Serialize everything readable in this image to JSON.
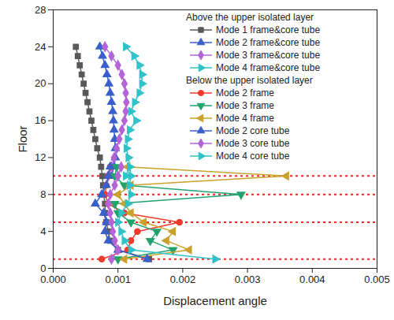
{
  "chart_data": {
    "type": "line",
    "x_label": "Displacement angle",
    "y_label": "Floor",
    "xlim": [
      0,
      0.005
    ],
    "xticks": [
      {
        "value": 0,
        "label": "0.000"
      },
      {
        "value": 0.001,
        "label": "0.001"
      },
      {
        "value": 0.002,
        "label": "0.002"
      },
      {
        "value": 0.003,
        "label": "0.003"
      },
      {
        "value": 0.004,
        "label": "0.004"
      },
      {
        "value": 0.005,
        "label": "0.005"
      }
    ],
    "ylim": [
      0,
      28
    ],
    "yticks": [
      0,
      4,
      8,
      12,
      16,
      20,
      24,
      28
    ],
    "legend": "upper right",
    "hlines": {
      "values": [
        1,
        5,
        8,
        10
      ],
      "color": "#ff2020",
      "line_style": "dotted"
    },
    "legend_groups": [
      {
        "title": "Above the upper isolated layer",
        "series": [
          "Mode 1 frame&core tube",
          "Mode 2 frame&core tube",
          "Mode 3 frame&core tube",
          "Mode 4 frame&core tube"
        ]
      },
      {
        "title": "Below the upper isolated layer",
        "series": [
          "Mode 2 frame",
          "Mode 3 frame",
          "Mode 4 frame",
          "Mode 2 core tube",
          "Mode 3 core tube",
          "Mode 4 core tube"
        ]
      }
    ],
    "series": [
      {
        "name": "Mode 1 frame&core tube",
        "color": "#595959",
        "marker": "square",
        "floors": [
          1,
          2,
          3,
          4,
          5,
          6,
          7,
          8,
          9,
          10,
          11,
          12,
          13,
          14,
          15,
          16,
          17,
          18,
          19,
          20,
          21,
          22,
          23,
          24
        ],
        "values": [
          0.00148,
          0.001,
          0.00088,
          0.00085,
          0.00082,
          0.0008,
          0.0008,
          0.00078,
          0.00077,
          0.00076,
          0.00074,
          0.00072,
          0.00068,
          0.00065,
          0.00062,
          0.00059,
          0.00056,
          0.00053,
          0.0005,
          0.00047,
          0.00044,
          0.00041,
          0.00038,
          0.00035
        ]
      },
      {
        "name": "Mode 2 frame&core tube",
        "color": "#3a5fcd",
        "marker": "triangle",
        "floors": [
          10,
          11,
          12,
          13,
          14,
          15,
          16,
          17,
          18,
          19,
          20,
          21,
          22,
          23,
          24
        ],
        "values": [
          0.0009,
          0.00094,
          0.00096,
          0.00096,
          0.00095,
          0.00094,
          0.00093,
          0.00092,
          0.0009,
          0.00088,
          0.00086,
          0.00083,
          0.0008,
          0.00076,
          0.00072
        ]
      },
      {
        "name": "Mode 3 frame&core tube",
        "color": "#b464d6",
        "marker": "diamond",
        "floors": [
          10,
          11,
          12,
          13,
          14,
          15,
          16,
          17,
          18,
          19,
          20,
          21,
          22,
          23,
          24
        ],
        "values": [
          0.00085,
          0.0009,
          0.00094,
          0.00098,
          0.00102,
          0.00106,
          0.0011,
          0.00112,
          0.00113,
          0.00112,
          0.0011,
          0.00106,
          0.001,
          0.0009,
          0.0008
        ]
      },
      {
        "name": "Mode 4 frame&core tube",
        "color": "#30c2c8",
        "marker": "triangle-right",
        "floors": [
          10,
          11,
          12,
          13,
          14,
          15,
          16,
          17,
          18,
          19,
          20,
          21,
          22,
          23,
          24
        ],
        "values": [
          0.00112,
          0.00118,
          0.00116,
          0.00113,
          0.00115,
          0.00118,
          0.00128,
          0.0012,
          0.00126,
          0.00133,
          0.00137,
          0.00137,
          0.00133,
          0.00125,
          0.00112
        ]
      },
      {
        "name": "Mode 2 frame",
        "color": "#f03a2c",
        "marker": "circle",
        "floors": [
          1,
          2,
          3,
          4,
          5,
          6,
          7,
          8,
          9,
          10,
          11
        ],
        "values": [
          0.00075,
          0.00115,
          0.0012,
          0.0013,
          0.00195,
          0.0011,
          0.00085,
          0.0008,
          0.00082,
          0.00085,
          0.00088
        ]
      },
      {
        "name": "Mode 3 frame",
        "color": "#22a36e",
        "marker": "triangle-down",
        "floors": [
          1,
          2,
          3,
          4,
          5,
          6,
          7,
          8,
          9,
          10,
          11
        ],
        "values": [
          0.001,
          0.00185,
          0.0015,
          0.0016,
          0.0012,
          0.001,
          0.00095,
          0.0029,
          0.0011,
          0.00095,
          0.00098
        ]
      },
      {
        "name": "Mode 4 frame",
        "color": "#c9a12c",
        "marker": "triangle-left",
        "floors": [
          1,
          2,
          3,
          4,
          5,
          6,
          7,
          8,
          9,
          10,
          11
        ],
        "values": [
          0.0011,
          0.0021,
          0.00175,
          0.00185,
          0.0014,
          0.0012,
          0.0011,
          0.001,
          0.0012,
          0.0036,
          0.00115
        ]
      },
      {
        "name": "Mode 2 core tube",
        "color": "#3a5fcd",
        "marker": "triangle",
        "floors": [
          1,
          2,
          3,
          4,
          5,
          6,
          7,
          8,
          9,
          10,
          11
        ],
        "values": [
          0.00145,
          0.001,
          0.00085,
          0.0008,
          0.00082,
          0.00078,
          0.00065,
          0.00075,
          0.00082,
          0.00085,
          0.00088
        ]
      },
      {
        "name": "Mode 3 core tube",
        "color": "#b464d6",
        "marker": "diamond",
        "floors": [
          1,
          2,
          3,
          4,
          5,
          6,
          7,
          8,
          9,
          10,
          11
        ],
        "values": [
          0.0009,
          0.001,
          0.00095,
          0.00092,
          0.0009,
          0.00088,
          0.00085,
          0.00088,
          0.00095,
          0.001,
          0.00105
        ]
      },
      {
        "name": "Mode 4 core tube",
        "color": "#30c2c8",
        "marker": "triangle-right",
        "floors": [
          1,
          2,
          3,
          4,
          5,
          6,
          7,
          8,
          9,
          10,
          11
        ],
        "values": [
          0.0025,
          0.0012,
          0.0011,
          0.00105,
          0.001,
          0.00105,
          0.00115,
          0.0012,
          0.00118,
          0.0012,
          0.00118
        ]
      }
    ]
  }
}
